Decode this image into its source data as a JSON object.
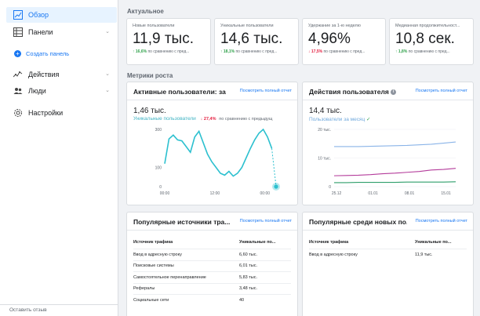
{
  "sidebar": {
    "items": [
      {
        "label": "Обзор"
      },
      {
        "label": "Панели"
      },
      {
        "label": "Создать панель"
      },
      {
        "label": "Действия"
      },
      {
        "label": "Люди"
      },
      {
        "label": "Настройки"
      }
    ],
    "feedback": "Оставить отзыв"
  },
  "overview": {
    "title": "Актуальное",
    "cards": [
      {
        "label": "Новые пользователи",
        "value": "11,9 тыс.",
        "delta": "↑ 16,6%",
        "delta_note": "по сравнению с пред..."
      },
      {
        "label": "Уникальные пользователи",
        "value": "14,6 тыс.",
        "delta": "↑ 18,1%",
        "delta_note": "по сравнению с пред..."
      },
      {
        "label": "Удержание за 1-ю неделю",
        "value": "4,96%",
        "delta": "↓ 17,5%",
        "delta_note": "по сравнению с пред..."
      },
      {
        "label": "Медианная продолжительност...",
        "value": "10,8 сек.",
        "delta": "↑ 1,8%",
        "delta_note": "по сравнению с пред..."
      }
    ]
  },
  "metrics": {
    "title": "Метрики роста",
    "active_users": {
      "title": "Активные пользователи: за ...",
      "link": "Посмотреть полный отчет",
      "value": "1,46 тыс.",
      "series": "Уникальные пользователи",
      "delta": "↓ 27,4%",
      "delta_note": "по сравнению с предыдущ"
    },
    "user_actions": {
      "title": "Действия пользователя",
      "link": "Посмотреть полный отчет",
      "value": "14,4 тыс.",
      "series": "Пользователи за месяц"
    }
  },
  "traffic": {
    "title": "Популярные источники тра...",
    "link": "Посмотреть полный отчет",
    "headers": [
      "Источник трафика",
      "Уникальные по..."
    ],
    "rows": [
      [
        "Ввод в адресную строку",
        "6,60 тыс."
      ],
      [
        "Поисковые системы",
        "6,01 тыс."
      ],
      [
        "Самостоятельное перенаправление",
        "5,83 тыс."
      ],
      [
        "Рефералы",
        "3,48 тыс."
      ],
      [
        "Социальные сети",
        "40"
      ]
    ]
  },
  "new_users": {
    "title": "Популярные среди новых по...",
    "link": "Посмотреть полный отчет",
    "headers": [
      "Источник трафика",
      "Уникальные по..."
    ],
    "rows": [
      [
        "Ввод в адресную строку",
        "11,9 тыс."
      ]
    ]
  },
  "colors": {
    "accent": "#1877f2",
    "line": "#2cc0cf",
    "up": "#31a24c",
    "down": "#e41e3f"
  },
  "chart_data": [
    {
      "type": "line",
      "x_ticks": [
        "00:00",
        "12:00",
        "00:00"
      ],
      "y_ticks": [
        "300",
        "100",
        "0"
      ],
      "series": [
        {
          "name": "Уникальные пользователи",
          "values": [
            120,
            250,
            270,
            245,
            240,
            210,
            180,
            260,
            290,
            230,
            170,
            130,
            100,
            70,
            60,
            80,
            55,
            70,
            100,
            150,
            200,
            245,
            280,
            300,
            260,
            200,
            0
          ]
        }
      ]
    },
    {
      "type": "line",
      "x_ticks": [
        "25.12",
        "01.01",
        "08.01",
        "15.01"
      ],
      "y_ticks": [
        "20 тыс.",
        "10 тыс.",
        "0"
      ],
      "series": [
        {
          "name": "Пользователи за месяц",
          "values": [
            14.0,
            14.0,
            14.0,
            14.1,
            14.2,
            14.3,
            14.4,
            14.6,
            14.8,
            15.2,
            15.6
          ]
        },
        {
          "color_name": "purple",
          "values": [
            3.8,
            3.9,
            4.0,
            4.2,
            4.5,
            4.7,
            5.0,
            5.3,
            5.8,
            6.0,
            6.4
          ]
        },
        {
          "color_name": "green",
          "values": [
            1.4,
            1.4,
            1.5,
            1.5,
            1.5,
            1.5,
            1.6,
            1.6,
            1.6,
            1.6,
            1.7
          ]
        }
      ]
    }
  ]
}
